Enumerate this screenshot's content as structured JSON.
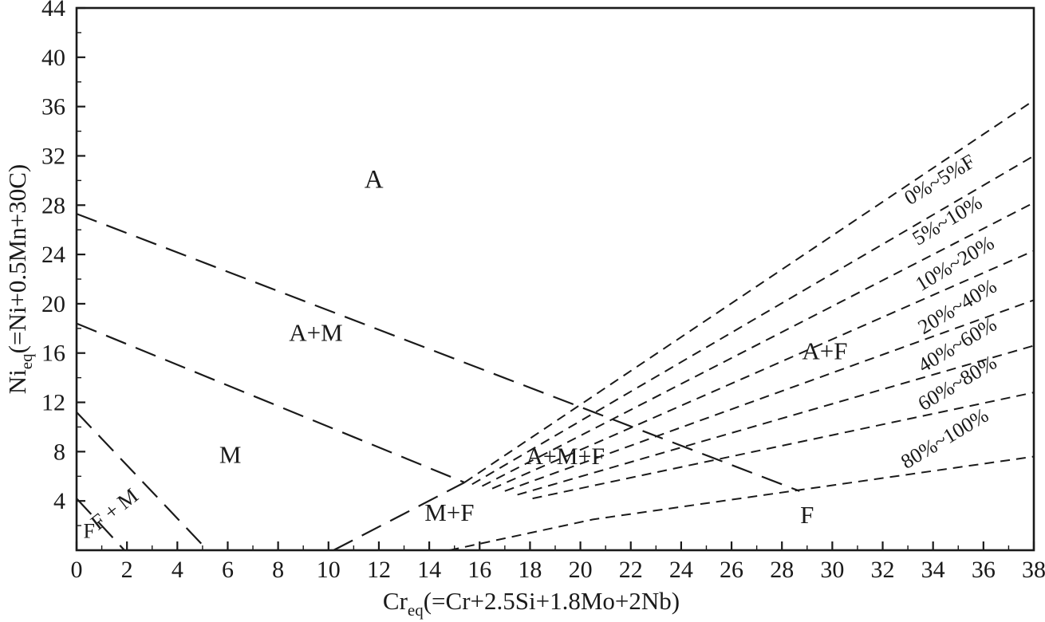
{
  "chart_data": {
    "type": "line",
    "title": "",
    "xlabel": {
      "prefix": "Cr",
      "sub": "eq",
      "rest": "(=Cr+2.5Si+1.8Mo+2Nb)"
    },
    "ylabel": {
      "prefix": "Ni",
      "sub": "eq",
      "rest": "(=Ni+0.5Mn+30C)"
    },
    "xlim": [
      0,
      38
    ],
    "ylim": [
      0,
      44
    ],
    "x_ticks": [
      0,
      2,
      4,
      6,
      8,
      10,
      12,
      14,
      16,
      18,
      20,
      22,
      24,
      26,
      28,
      30,
      32,
      34,
      36,
      38
    ],
    "x_tick_labels": [
      "0",
      "2",
      "4",
      "6",
      "8",
      "10",
      "12",
      "14",
      "16",
      "18",
      "20",
      "22",
      "24",
      "26",
      "28",
      "30",
      "32",
      "34",
      "36",
      "38"
    ],
    "y_ticks": [
      4,
      8,
      12,
      16,
      20,
      24,
      28,
      32,
      36,
      40,
      44
    ],
    "y_tick_labels": [
      "4",
      "8",
      "12",
      "16",
      "20",
      "24",
      "28",
      "32",
      "36",
      "40",
      "44"
    ],
    "lines": [
      {
        "name": "boundary-A-AM",
        "style": "long",
        "points": [
          [
            0,
            27.3
          ],
          [
            28.7,
            4.8
          ]
        ]
      },
      {
        "name": "boundary-AM-M",
        "style": "long",
        "points": [
          [
            0,
            18.4
          ],
          [
            15.4,
            5.5
          ]
        ]
      },
      {
        "name": "boundary-M-FM",
        "style": "long",
        "points": [
          [
            0,
            11.2
          ],
          [
            5.2,
            0
          ]
        ]
      },
      {
        "name": "boundary-FM-F",
        "style": "long",
        "points": [
          [
            0,
            4.2
          ],
          [
            1.9,
            0
          ]
        ]
      },
      {
        "name": "boundary-M-MF",
        "style": "long",
        "points": [
          [
            10.2,
            0
          ],
          [
            15.4,
            5.5
          ]
        ]
      },
      {
        "name": "ferrite-0pct",
        "style": "short",
        "points": [
          [
            15.4,
            5.5
          ],
          [
            38,
            36.5
          ]
        ]
      },
      {
        "name": "ferrite-5pct",
        "style": "short",
        "points": [
          [
            15.7,
            5.35
          ],
          [
            38,
            32.0
          ]
        ]
      },
      {
        "name": "ferrite-10pct",
        "style": "short",
        "points": [
          [
            16.1,
            5.2
          ],
          [
            38,
            28.2
          ]
        ]
      },
      {
        "name": "ferrite-20pct",
        "style": "short",
        "points": [
          [
            16.5,
            5.0
          ],
          [
            38,
            24.3
          ]
        ]
      },
      {
        "name": "ferrite-40pct",
        "style": "short",
        "points": [
          [
            17.0,
            4.8
          ],
          [
            38,
            20.3
          ]
        ]
      },
      {
        "name": "ferrite-60pct",
        "style": "short",
        "points": [
          [
            17.5,
            4.5
          ],
          [
            38,
            16.6
          ]
        ]
      },
      {
        "name": "ferrite-80pct",
        "style": "short",
        "points": [
          [
            18.1,
            4.2
          ],
          [
            38,
            12.8
          ]
        ]
      },
      {
        "name": "ferrite-100pct",
        "style": "short",
        "points": [
          [
            14.8,
            0
          ],
          [
            20.5,
            2.5
          ],
          [
            38,
            7.6
          ]
        ]
      }
    ],
    "region_labels": [
      {
        "text": "A",
        "x": 11.8,
        "y": 29.4,
        "size": 33
      },
      {
        "text": "A+M",
        "x": 9.5,
        "y": 17.0,
        "size": 31
      },
      {
        "text": "M",
        "x": 6.1,
        "y": 7.1,
        "size": 31
      },
      {
        "text": "F+M",
        "x": 1.75,
        "y": 3.0,
        "size": 27,
        "rotate": -38,
        "spacing": 6
      },
      {
        "text": "F",
        "x": 0.5,
        "y": 1.0,
        "size": 26
      },
      {
        "text": "M+F",
        "x": 14.8,
        "y": 2.4,
        "size": 31
      },
      {
        "text": "A+M+F",
        "x": 19.4,
        "y": 7.0,
        "size": 30
      },
      {
        "text": "A+F",
        "x": 29.7,
        "y": 15.5,
        "size": 31
      },
      {
        "text": "F",
        "x": 29.0,
        "y": 2.2,
        "size": 31
      }
    ],
    "ferrite_labels": [
      {
        "text": "0%~5%F",
        "x": 34.4,
        "y": 29.6
      },
      {
        "text": "5%~10%",
        "x": 34.7,
        "y": 26.3
      },
      {
        "text": "10%~20%",
        "x": 35.0,
        "y": 22.8
      },
      {
        "text": "20%~40%",
        "x": 35.1,
        "y": 19.3
      },
      {
        "text": "40%~60%",
        "x": 35.1,
        "y": 16.2
      },
      {
        "text": "60%~80%",
        "x": 35.1,
        "y": 13.1
      },
      {
        "text": "80%~100%",
        "x": 34.6,
        "y": 8.6
      }
    ],
    "ferrite_label_rotate": -31,
    "ferrite_label_size": 26,
    "colors": {
      "ink": "#1a1a1a",
      "background": "#ffffff"
    }
  }
}
